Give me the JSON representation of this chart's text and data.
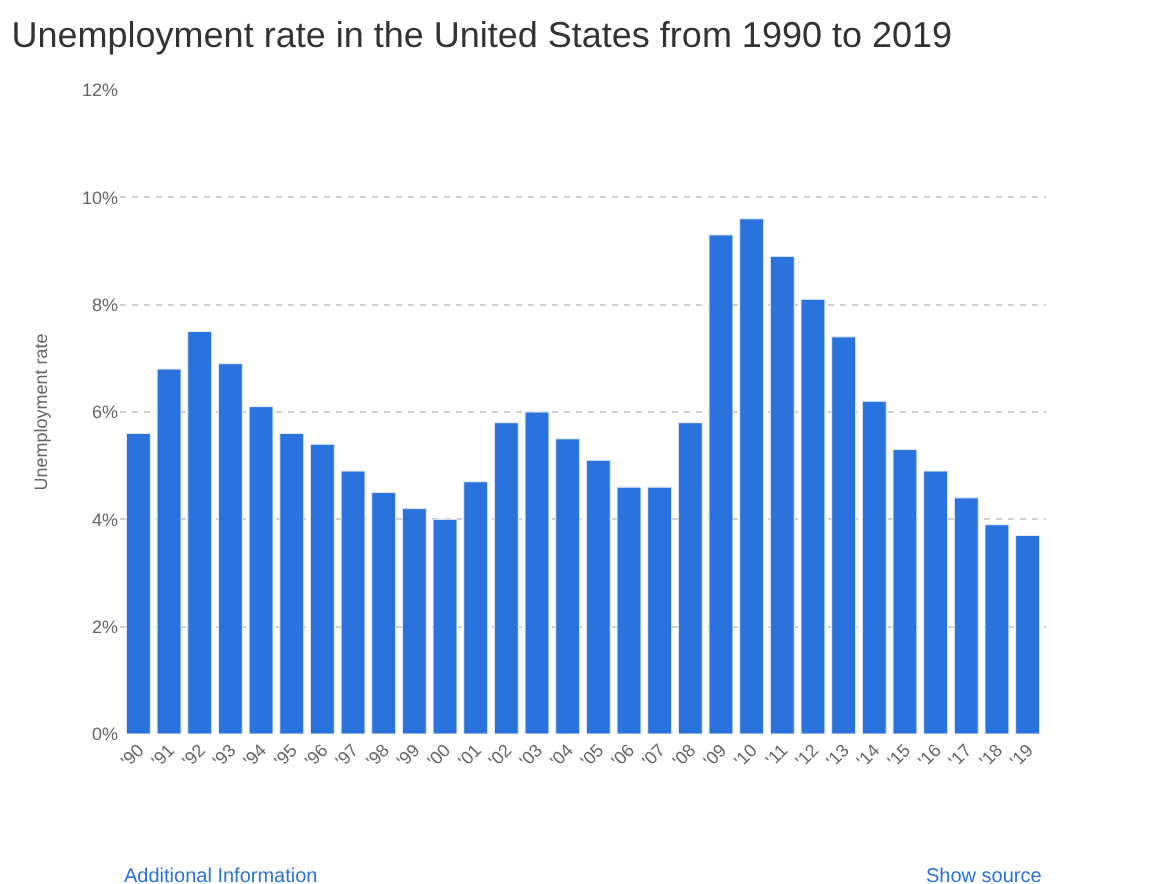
{
  "chart_data": {
    "type": "bar",
    "title": "Unemployment rate in the United States from 1990 to 2019",
    "ylabel": "Unemployment rate",
    "categories": [
      "'90",
      "'91",
      "'92",
      "'93",
      "'94",
      "'95",
      "'96",
      "'97",
      "'98",
      "'99",
      "'00",
      "'01",
      "'02",
      "'03",
      "'04",
      "'05",
      "'06",
      "'07",
      "'08",
      "'09",
      "'10",
      "'11",
      "'12",
      "'13",
      "'14",
      "'15",
      "'16",
      "'17",
      "'18",
      "'19"
    ],
    "values": [
      5.6,
      6.8,
      7.5,
      6.9,
      6.1,
      5.6,
      5.4,
      4.9,
      4.5,
      4.2,
      4.0,
      4.7,
      5.8,
      6.0,
      5.5,
      5.1,
      4.6,
      4.6,
      5.8,
      9.3,
      9.6,
      8.9,
      8.1,
      7.4,
      6.2,
      5.3,
      4.9,
      4.4,
      3.9,
      3.7
    ],
    "color": "#2a73dc",
    "ylim": [
      0,
      12
    ],
    "yticks": [
      {
        "value": 0,
        "label": "0%"
      },
      {
        "value": 2,
        "label": "2%"
      },
      {
        "value": 4,
        "label": "4%"
      },
      {
        "value": 6,
        "label": "6%"
      },
      {
        "value": 8,
        "label": "8%"
      },
      {
        "value": 10,
        "label": "10%"
      },
      {
        "value": 12,
        "label": "12%"
      }
    ],
    "grid": "y",
    "annotations": [
      "Additional Information",
      "Show source"
    ]
  }
}
